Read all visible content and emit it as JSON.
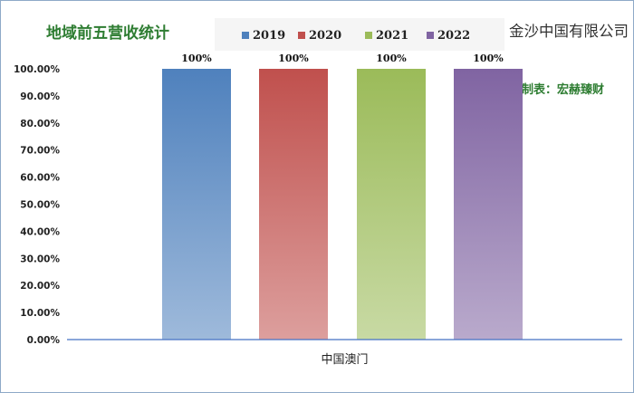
{
  "header": {
    "title": "地域前五营收统计",
    "company": "金沙中国有限公司",
    "credit": "制表：宏赫臻财"
  },
  "colors": {
    "title": "#2e7d32",
    "credit": "#2e7d32",
    "axis": "#4472c4",
    "series": [
      "#4f81bd",
      "#c0504d",
      "#9bbb59",
      "#8064a2"
    ]
  },
  "chart_data": {
    "type": "bar",
    "categories": [
      "中国澳门"
    ],
    "series": [
      {
        "name": "2019",
        "values": [
          1.0
        ],
        "label": "100%"
      },
      {
        "name": "2020",
        "values": [
          1.0
        ],
        "label": "100%"
      },
      {
        "name": "2021",
        "values": [
          1.0
        ],
        "label": "100%"
      },
      {
        "name": "2022",
        "values": [
          1.0
        ],
        "label": "100%"
      }
    ],
    "ylim": [
      0,
      1
    ],
    "yticks": [
      0,
      0.1,
      0.2,
      0.3,
      0.4,
      0.5,
      0.6,
      0.7,
      0.8,
      0.9,
      1.0
    ],
    "ytick_labels": [
      "0.00%",
      "10.00%",
      "20.00%",
      "30.00%",
      "40.00%",
      "50.00%",
      "60.00%",
      "70.00%",
      "80.00%",
      "90.00%",
      "100.00%"
    ],
    "legend_position": "top",
    "grid": false
  }
}
